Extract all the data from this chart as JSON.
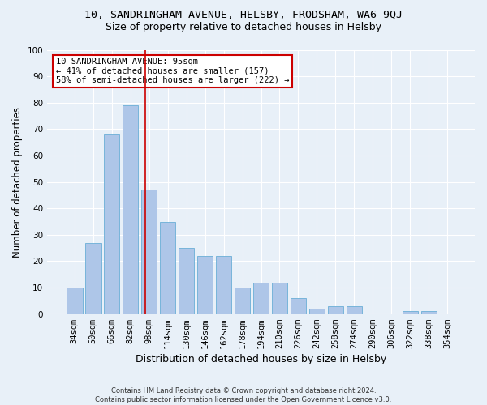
{
  "title": "10, SANDRINGHAM AVENUE, HELSBY, FRODSHAM, WA6 9QJ",
  "subtitle": "Size of property relative to detached houses in Helsby",
  "xlabel": "Distribution of detached houses by size in Helsby",
  "ylabel": "Number of detached properties",
  "bar_labels": [
    "34sqm",
    "50sqm",
    "66sqm",
    "82sqm",
    "98sqm",
    "114sqm",
    "130sqm",
    "146sqm",
    "162sqm",
    "178sqm",
    "194sqm",
    "210sqm",
    "226sqm",
    "242sqm",
    "258sqm",
    "274sqm",
    "290sqm",
    "306sqm",
    "322sqm",
    "338sqm",
    "354sqm"
  ],
  "bar_values": [
    10,
    27,
    68,
    79,
    47,
    35,
    25,
    22,
    22,
    10,
    12,
    12,
    6,
    2,
    3,
    3,
    0,
    0,
    1,
    1,
    0
  ],
  "bar_color": "#aec6e8",
  "bar_edge_color": "#6aaed6",
  "vline_x": 3.81,
  "vline_color": "#cc0000",
  "annotation_text": "10 SANDRINGHAM AVENUE: 95sqm\n← 41% of detached houses are smaller (157)\n58% of semi-detached houses are larger (222) →",
  "annotation_box_color": "#ffffff",
  "annotation_box_edge": "#cc0000",
  "background_color": "#e8f0f8",
  "plot_bg_color": "#e8f0f8",
  "footer": "Contains HM Land Registry data © Crown copyright and database right 2024.\nContains public sector information licensed under the Open Government Licence v3.0.",
  "ylim": [
    0,
    100
  ],
  "title_fontsize": 9.5,
  "subtitle_fontsize": 9,
  "ylabel_fontsize": 8.5,
  "xlabel_fontsize": 9,
  "tick_fontsize": 7.5,
  "footer_fontsize": 6,
  "annotation_fontsize": 7.5
}
